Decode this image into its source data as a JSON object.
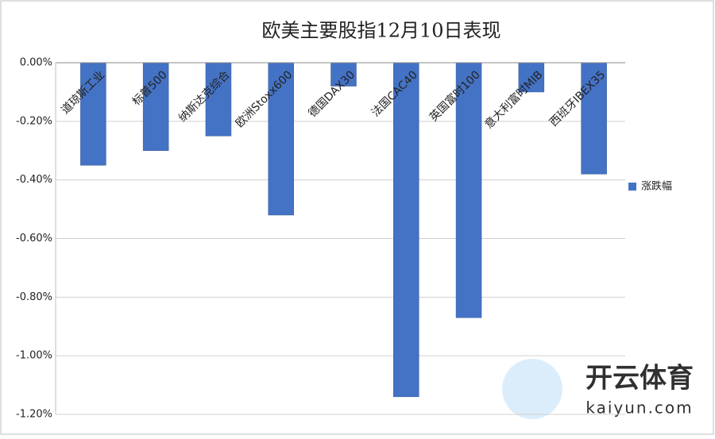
{
  "chart_data": {
    "type": "bar",
    "title": "欧美主要股指12月10日表现",
    "categories": [
      "道琼斯工业",
      "标普500",
      "纳斯达克综合",
      "欧洲Stoxx600",
      "德国DAX30",
      "法国CAC40",
      "英国富时100",
      "意大利富时MIB",
      "西班牙IBEX35"
    ],
    "series": [
      {
        "name": "涨跌幅",
        "color": "#4472c4",
        "values": [
          -0.35,
          -0.3,
          -0.25,
          -0.52,
          -0.08,
          -1.14,
          -0.87,
          -0.1,
          -0.38
        ]
      }
    ],
    "ylim": [
      -1.2,
      0
    ],
    "yticks": [
      {
        "value": 0,
        "label": "0.00%"
      },
      {
        "value": -0.2,
        "label": "-0.20%"
      },
      {
        "value": -0.4,
        "label": "-0.40%"
      },
      {
        "value": -0.6,
        "label": "-0.60%"
      },
      {
        "value": -0.8,
        "label": "-0.80%"
      },
      {
        "value": -1.0,
        "label": "-1.00%"
      },
      {
        "value": -1.2,
        "label": "-1.20%"
      }
    ],
    "grid": true,
    "legend": "right"
  },
  "watermark": {
    "brand": "开云体育",
    "site": "kaiyun.com"
  }
}
